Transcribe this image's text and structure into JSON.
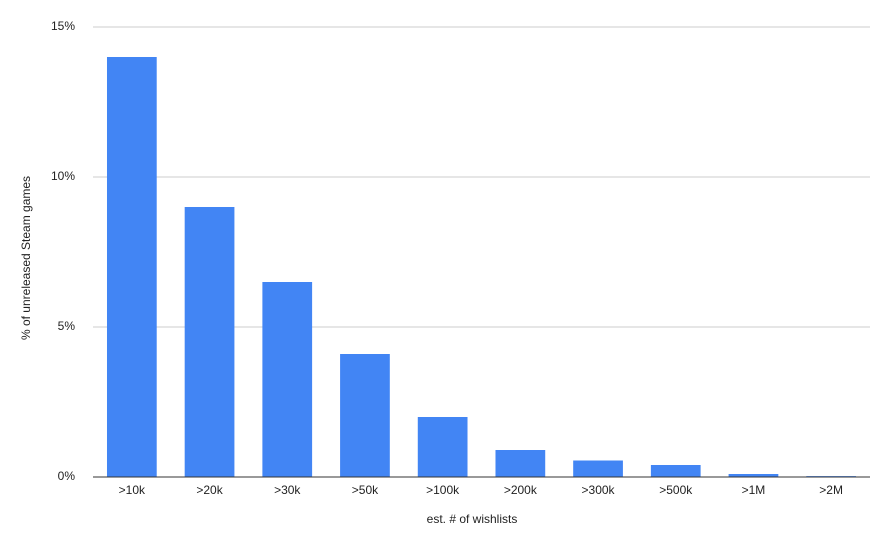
{
  "chart_data": {
    "type": "bar",
    "x_label": "est. # of wishlists",
    "y_label": "% of unreleased Steam games",
    "categories": [
      ">10k",
      ">20k",
      ">30k",
      ">50k",
      ">100k",
      ">200k",
      ">300k",
      ">500k",
      ">1M",
      ">2M"
    ],
    "values": [
      14.0,
      9.0,
      6.5,
      4.1,
      2.0,
      0.9,
      0.55,
      0.4,
      0.1,
      0.03
    ],
    "color": "#4285f4",
    "ylim": [
      0,
      15
    ],
    "yticks": [
      {
        "value": 0,
        "label": "0%"
      },
      {
        "value": 5,
        "label": "5%"
      },
      {
        "value": 10,
        "label": "10%"
      },
      {
        "value": 15,
        "label": "15%"
      }
    ],
    "grid": true
  }
}
